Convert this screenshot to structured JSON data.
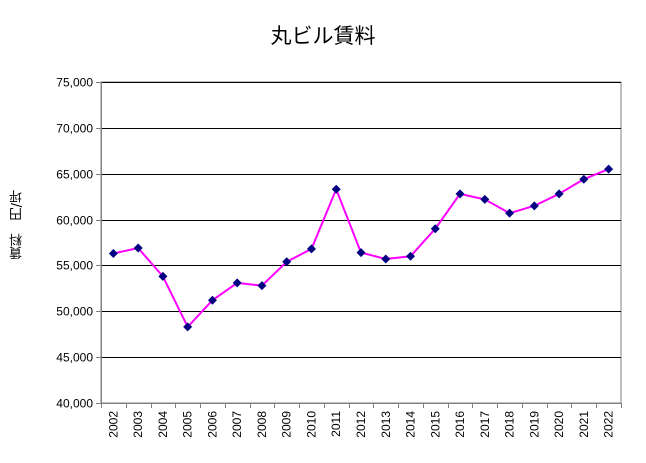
{
  "chart_data": {
    "type": "line",
    "title": "丸ビル賃料",
    "xlabel": "",
    "ylabel": "賃料　円/坪",
    "ylim": [
      40000,
      75000
    ],
    "ytick_values": [
      40000,
      45000,
      50000,
      55000,
      60000,
      65000,
      70000,
      75000
    ],
    "ytick_labels": [
      "40,000",
      "45,000",
      "50,000",
      "55,000",
      "60,000",
      "65,000",
      "70,000",
      "75,000"
    ],
    "categories": [
      "2002",
      "2003",
      "2004",
      "2005",
      "2006",
      "2007",
      "2008",
      "2009",
      "2010",
      "2011",
      "2012",
      "2013",
      "2014",
      "2015",
      "2016",
      "2017",
      "2018",
      "2019",
      "2020",
      "2021",
      "2022"
    ],
    "series": [
      {
        "values": [
          56300,
          56900,
          53800,
          48300,
          51200,
          53100,
          52800,
          55400,
          56800,
          63300,
          56400,
          55700,
          56000,
          59000,
          62800,
          62200,
          60700,
          61500,
          62800,
          64400,
          65500
        ]
      }
    ],
    "grid": true,
    "legend": "none",
    "colors": {
      "line": "#ff00ff",
      "marker": "#000080",
      "grid": "#000000",
      "axis": "#808080",
      "plot_bg": "#ffffff"
    }
  }
}
